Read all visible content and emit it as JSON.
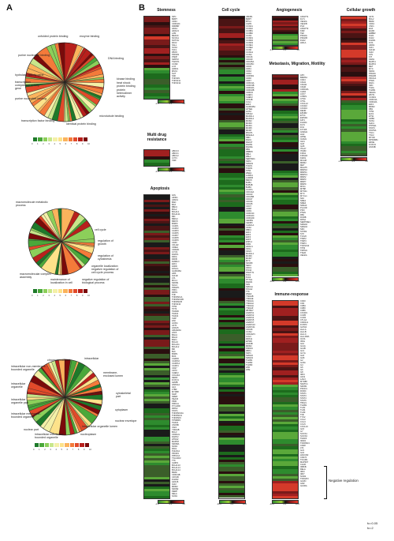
{
  "panels": {
    "a": "A",
    "b": "B"
  },
  "pie1": {
    "labels": [
      "unfolded protein binding",
      "enzyme binding",
      "purine nucleotide binding",
      "DNA binding",
      "hydrolase activity gene",
      "transcription corepressor activity gene",
      "purine nucleotide binding",
      "kinase binding",
      "heat shock protein binding",
      "protein heterodimer activity",
      "transcription factor binding",
      "identical protein binding",
      "microtubule binding"
    ]
  },
  "pie2": {
    "labels": [
      "macromolecule metabolic process",
      "cell cycle",
      "regulation of growth",
      "regulation of cytokinesis",
      "organelle localization",
      "negative regulation of cell cycle process",
      "macromolecular complex assembly",
      "maintenance of localization in cell",
      "negative regulation of biological process"
    ]
  },
  "pie3": {
    "labels": [
      "chromosomal part",
      "intracellular",
      "intracellular non-membrane-bounded organelle",
      "membrane-enclosed lumen",
      "intracellular organelle",
      "cytoskeletal part",
      "intracellular organelle part",
      "cytoplasm",
      "nuclear envelope",
      "intracellular membrane-bounded organelle",
      "intracellular organelle lumen",
      "nucleoplasm",
      "nuclear part"
    ]
  },
  "legend_ticks": [
    "0",
    "1",
    "2",
    "3",
    "4",
    "5",
    "6",
    "7",
    "8",
    "9",
    "10"
  ],
  "legend_colors": [
    "#1e7a2a",
    "#4aa83a",
    "#8ccf5a",
    "#c8e68a",
    "#f4f0a8",
    "#fde28a",
    "#fbb35c",
    "#f47a3a",
    "#e24a2a",
    "#b8201c",
    "#7a0a0a"
  ],
  "heatmaps": {
    "stemness": {
      "title": "Stemness",
      "genes": "NPC\nBMP7\nCD34\nCDKN2C\nDMRBP\nHDAC\nHDAC3\nLAM\nMEF2C\nNCOA1\nNOTCH\nPAX2\nSALL\nSOX2\nTAF1\nFBXO\nPROM1\nPSDP\nSMPX2\nTWIST1\nCCND\nLOX\nLRRK1\nMSX1\nSLIT\nSNF\nTNFSF9\nTNFSF11\nTNFSF12",
      "cbar": [
        "-1.0",
        "0.0",
        "1.0"
      ]
    },
    "multidrug": {
      "title": "Multi drug resistance",
      "genes": "ABCC3\nABCC1\nABCC2\nCYP1\nVWF",
      "cbar": [
        "-4.0",
        "0.0",
        "4.0"
      ]
    },
    "apoptosis": {
      "title": "Apoptosis",
      "genes": "FAS\nAIFM1\nAPAF1\nBAD\nBAX\nBBC3\nBCL2\nBCL2L1\nBCL2L11\nBID\nBIRC2\nBIRC5\nBNIP3\nCASP1\nCASP2\nCASP3\nCASP6\nCASP7\nCASP8\nCASP9\nCD40\nCFLAR\nCIDEA\nCRADD\nCYCS\nDAPK1\nDFFA\nDFFB\nDIABLO\nE2F1\nFADD\nFASLG\nGADD45A\nHRK\nIGF1R\nLTA\nMCL1\nNFKB1\nNOL3\nPMAIP1\nPRF1\nRIPK1\nTNF\nTNFRSF1A\nTNFRSF10B\nTNFRSF25\nTNFSF10\nTP53\nTP73\nTRADD\nTRAF2\nTRAF3\nXIAP\nZAK\nACIN1\nAKT1\nANXA5\nARHGDIA\nATF5\nBAG1\nBAG3\nBAK1\nBCL10\nBCL2A1\nBCL2L2\nBIK\nBLK\nBNIP1\nBOK\nCARD6\nCASP10\nCASP14\nCASP4\nCD27\nCD70\nCHEK2\nCOL4A3\nDEDD\nFOXO1\nGZMB\nHSPA1A\nIL10\nLTBR\nMYD88\nNAIP\nNME5\nPEA15\nPIDD\nPRKCA\nPYCARD\nRIPK2\nSTAT1\nTNFRSF10A\nTNFRSF21\nTNFRSF9\nTP53BP2\nTRAF4\nUNC5B\nXAF1\nYWHAB\nBCL3\nCD40LG\nDAPK2\nHTRA2\nMAPK8\nNFKBIA\nNOD1\nPAK1\nPHLDA1\nPIK3R1\nPPP2CA\nTSC22D3\nTTK\nULBP1\nBCL2L10\nBCL2L13\nBCL2L14\nBRAF\nCDKN1B\nCRYAB\nFGFR2\nGDF15\nIGF2\nMDM2\nNFKB2\nPERP\nRELA\nSOD1\nTNFRSF4",
      "cbar": [
        "-1.0",
        "0.0",
        "1.0"
      ]
    },
    "cellcycle": {
      "title": "Cell cycle",
      "genes": "ABCB1\nBMP7\nBTG1\nCAPN\nCCNA1\nCCNA2\nCCNB1\nCCNB2\nCCNC\nCCND1\nCCND2\nCCND3\nCCNE1\nCCNE2\nCCNF\nCCNG1\nCCNH\nCDC16\nCDC20\nCDC25A\nCDC25C\nCDC6\nCDK1\nCDK2\nCDK4\nCDK5R1\nCDK6\nCDK7\nCDKN1A\nCDKN1B\nCDKN2A\nCDKN2B\nCDKN3\nCHEK1\nCHEK2\nCKS1B\nCUL1\nE2F4\nGADD45A\nGTSE1\nHUS1\nKPNA2\nMAD2L1\nMAD2L2\nMCM2\nMCM3\nMCM4\nMCM5\nMKI67\nMNAT1\nMRE11A\nNBN\nRAD1\nRAD17\nRAD51\nRAD9A\nRB1\nRBBP8\nRBL1\nRBL2\nSERTAD1\nSKP2\nSMAD3\nTFDP1\nTFDP2\nTP53\nWEE1\nAURKA\nAURKB\nBIRC5\nBUB1\nBUB1B\nBUB3\nCCNT1\nCDC14A\nCDC23\nCDC25B\nCDC27\nCDC34\nCDC45\nCDC7\nCDK8\nCDK9\nCDKN1C\nCDKN2C\nCDKN2D\nCENPE\nCENPF\nCHAF1A\nCKS2\nDBF4\nE2F1\nE2F2\nE2F3\nE2F5\nESPL1\nFZR1\nHDAC1\nKIF11\nKIF2C\nMAD1L1\nMCM6\nMCM7\nMYC\nNDC80\nNEK2\nORC1\nPCNA\nPKMYT1\nPLK1\nPLK4\nPTTG1\nRAD21\nSFN\nSMC1A\nSTAG2\nTTK\nWEE2\nYWHAB\nYWHAE\nYWHAG\nYWHAH\nYWHAQ\nYWHAZ\nZBTB17\nANAPC1\nANAPC2\nANAPC4\nANAPC5\nANAPC7\nANAPC10\nANAPC11\nCDC26\nCCNH\nCDK2AP1\nCUL3\nDDX11\nEP300\nGSK3B\nMDM2\nPRKDC\nRBX1\nSKP1\nSMAD2\nSMAD4\nTGFB1\nTGFB2\nTGFB3\nATR\nATM",
      "cbar": [
        "-10.0",
        "0.0",
        "10.0"
      ]
    },
    "angiogenesis": {
      "title": "Angiogenesis",
      "genes": "ANGPT1\nFLT1\nVEGFA\nVEGFB\nPGF\nANGPT2\nKDR\nTEK\nPDGFA\nPDGFB\nFGF2\nHIF1A\nNRP1\nTGFB1\nTHBS1",
      "cbar": [
        "-1.0",
        "0.0",
        "1.0"
      ]
    },
    "metastasis": {
      "title": "Metastasis, Migration, Motility",
      "genes": "APC\nBRMS1\nCD44\nCDH1\nCDH11\nCDH6\nCDKN2A\nCHD4\nCST7\nCTBP1\nCTSK\nCTSL\nCXCL12\nCXCR2\nCXCR4\nDENR\nEPHB2\nETV4\nEWSR1\nFAT1\nFGFR4\nFLT4\nFN1\nFXYD5\nGNRH1\nHGF\nHPSE\nICAM1\nIGF1\nIL18\nIL1B\nITGA7\nITGB3\nKISS1\nKISS1R\nKRAS\nMCAM\nMDM2\nMET\nMGAT5\nMMP10\nMMP11\nMMP13\nMMP2\nMMP3\nMMP7\nMMP9\nMTA1\nMTBP\nMTSS1\nMYC\nMYCL1\nNF2\nNME1\nNME4\nNR4A3\nPLAUR\nPNN\nPTEN\nRB1\nRORB\nRPSA\nSERPINE1\nSMAD2\nSMAD4\nSRC\nSSTR2\nSYK\nTCF20\nTIMP2\nTIMP3\nTIMP4\nTNFSF10\nTP53\nTRPM1\nTSHR\nVEGFA",
      "cbar": [
        "-10.0",
        "0.0",
        "10.0"
      ]
    },
    "immune": {
      "title": "Immune-response",
      "genes": "CD40\nCD4\nCD8A\nCD80\nCD86\nCXCR3\nCCR5\nCCR4\nCTLA4\nCD40LG\nFOXP3\nGATA3\nHLA-A\nHLA-B\nHLA-C\nHLA-DRA\nICOS\nIFNG\nIL10\nIL12A\nIL12B\nIL13\nIL17A\nIL18\nIL1B\nIL2\nIL23A\nIL4\nIL5\nIL6\nIL8\nIRF4\nJAK2\nLAG3\nMYD88\nNFATC1\nNFKB1\nPDCD1\nRORC\nSTAT1\nSTAT3\nSTAT4\nSTAT6\nTBX21\nTGFB1\nTLR2\nTLR4\nTLR9\nTNF\nTYK2\nCCL2\nCCL3\nCCL5\nCXCL10\nIL15\nIL7\nSOCS1\nSOCS3\nTRAF6\nIRAK1\nTNFRSF4\nCD28\nLTA\nIL21\nIL22\nHAVCR2\nCD274\nTICAM1\nMAP3K7\nCHUK\nIKBKB\nRELA\nIRF3\nIRF7\nNOD2\nTNFAIP3\nIL1RN\nIL6R\nIL10RA",
      "cbar": [
        "-10.0",
        "0.0",
        "10.0"
      ]
    },
    "growth": {
      "title": "Cellular growth",
      "genes": "AKT1\nBCL2\nBRAF\nCDK4\nCSF1\nEGF\nEGFR\nERBB2\nFGF1\nFGF2\nFGFR1\nFOS\nHRAS\nIGF1\nIGF1R\nIGF2\nJUN\nKIT\nKRAS\nMAPK1\nMAPK3\nMET\nMYC\nNRAS\nPDGFA\nPDGFB\nPIK3CA\nPTEN\nRAF1\nSRC\nTGFA\nTGFB1\nVEGFA\nWNT1\nCCND1\nCDKN1A\nCDKN2A\nE2F1\nMDM2\nRB1\nTP53\nELK1\nETS1\nGRB2\nSOS1\nSHC1\nPTPN11\nSTAT3\nSTAT5A\nTSC1\nTSC2\nMTOR\nRPS6KB1\nEIF4E\nFOXO3\nGSK3B",
      "cbar": [
        "-1.0",
        "0.0",
        "1.0"
      ]
    }
  },
  "negative_regulation": "Negative regulation",
  "footer": [
    "fc=0.05",
    "fc=2"
  ]
}
